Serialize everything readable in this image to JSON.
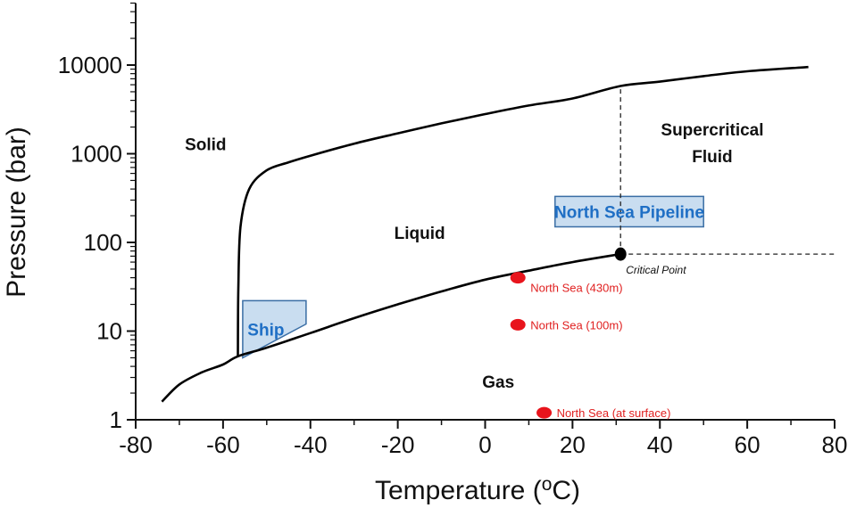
{
  "chart_data": {
    "type": "line",
    "title": "",
    "xlabel": "Temperature (",
    "xlabel_superscript": "o",
    "xlabel_suffix": "C)",
    "ylabel": "Pressure (bar)",
    "xlim": [
      -80,
      80
    ],
    "ylim": [
      1,
      50000
    ],
    "yscale": "log",
    "grid": false,
    "x_ticks": [
      -80,
      -60,
      -40,
      -20,
      0,
      20,
      40,
      60,
      80
    ],
    "x_tick_labels": [
      "-80",
      "-60",
      "-40",
      "-20",
      "0",
      "20",
      "40",
      "60",
      "80"
    ],
    "y_ticks": [
      1,
      10,
      100,
      1000,
      10000
    ],
    "y_tick_labels": [
      "1",
      "10",
      "100",
      "1000",
      "10000"
    ],
    "series": [
      {
        "role": "vapor-pressure-curve",
        "x": [
          -74,
          -70,
          -65,
          -60,
          -56.6,
          -50,
          -40,
          -30,
          -20,
          -10,
          0,
          10,
          20,
          31
        ],
        "y": [
          1.6,
          2.5,
          3.4,
          4.2,
          5.2,
          6.5,
          9.5,
          14,
          20,
          28,
          38,
          48,
          60,
          73.8
        ]
      },
      {
        "role": "melting-curve",
        "x": [
          -56.6,
          -56.5,
          -56,
          -54,
          -50,
          -45,
          -40,
          -30,
          -20,
          -10,
          0,
          10,
          20,
          31,
          40,
          50,
          60,
          74
        ],
        "y": [
          5.2,
          30,
          150,
          400,
          650,
          800,
          950,
          1300,
          1700,
          2200,
          2800,
          3500,
          4200,
          5800,
          6500,
          7500,
          8500,
          9500
        ]
      }
    ],
    "reference_lines": [
      {
        "role": "critical-temperature",
        "x": [
          31,
          31
        ],
        "y": [
          73.8,
          5800
        ],
        "style": "dashed"
      },
      {
        "role": "critical-pressure",
        "x": [
          31,
          80
        ],
        "y": [
          73.8,
          73.8
        ],
        "style": "dashed"
      }
    ],
    "critical_point": {
      "x": 31,
      "y": 73.8,
      "label": "Critical Point"
    },
    "region_labels": [
      {
        "text": "Solid",
        "x": -64,
        "y": 1100
      },
      {
        "text": "Liquid",
        "x": -15,
        "y": 110
      },
      {
        "text": "Gas",
        "x": 3,
        "y": 2.3
      },
      {
        "text": "Supercritical",
        "x": 52,
        "y": 1600
      },
      {
        "text": "Fluid",
        "x": 52,
        "y": 800
      }
    ],
    "points": [
      {
        "label": "North Sea (430m)",
        "x": 7.5,
        "y": 40,
        "color": "#e8141c"
      },
      {
        "label": "North Sea (100m)",
        "x": 7.5,
        "y": 11.8,
        "color": "#e8141c"
      },
      {
        "label": "North Sea (at surface)",
        "x": 13.5,
        "y": 1.2,
        "color": "#e8141c"
      }
    ],
    "annotation_boxes": [
      {
        "label": "Ship",
        "polygon": [
          [
            -55.5,
            22
          ],
          [
            -51,
            22
          ],
          [
            -41,
            22
          ],
          [
            -41,
            12
          ],
          [
            -55.5,
            5
          ]
        ],
        "fill": "#c9ddf0",
        "stroke": "#3a6ea5"
      },
      {
        "label": "North Sea Pipeline",
        "polygon": [
          [
            16,
            330
          ],
          [
            50,
            330
          ],
          [
            50,
            150
          ],
          [
            16,
            150
          ]
        ],
        "fill": "#c9ddf0",
        "stroke": "#3a6ea5"
      }
    ]
  }
}
